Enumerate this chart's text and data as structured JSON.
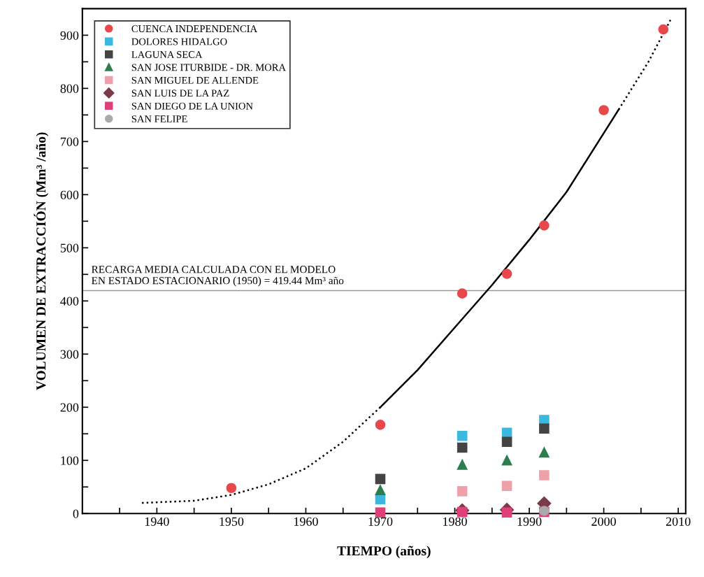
{
  "chart_data": {
    "type": "scatter",
    "xlabel": "TIEMPO (años)",
    "ylabel": "VOLUMEN DE EXTRACCIÓN (Mm³ /año)",
    "xlim": [
      1930,
      2011
    ],
    "ylim": [
      0,
      950
    ],
    "xticks": [
      {
        "value": 1935,
        "label": null
      },
      1940,
      {
        "value": 1945,
        "label": null
      },
      1950,
      {
        "value": 1955,
        "label": null
      },
      1960,
      {
        "value": 1965,
        "label": null
      },
      1970,
      {
        "value": 1975,
        "label": null
      },
      1980,
      {
        "value": 1985,
        "label": null
      },
      1990,
      {
        "value": 1995,
        "label": null
      },
      2000,
      {
        "value": 2005,
        "label": null
      },
      2010
    ],
    "yticks": [
      0,
      {
        "value": 50,
        "label": null
      },
      100,
      {
        "value": 150,
        "label": null
      },
      200,
      {
        "value": 250,
        "label": null
      },
      300,
      {
        "value": 350,
        "label": null
      },
      400,
      {
        "value": 450,
        "label": null
      },
      500,
      {
        "value": 550,
        "label": null
      },
      600,
      {
        "value": 650,
        "label": null
      },
      700,
      {
        "value": 750,
        "label": null
      },
      800,
      {
        "value": 850,
        "label": null
      },
      900
    ],
    "grid": false,
    "legend": "top left",
    "series": [
      {
        "name": "CUENCA INDEPENDENCIA",
        "color": "#e8474c",
        "marker": "circle",
        "x": [
          1950,
          1970,
          1981,
          1987,
          1992,
          2000,
          2008
        ],
        "values": [
          48,
          167,
          414,
          451,
          542,
          759,
          911
        ]
      },
      {
        "name": "DOLORES HIDALGO",
        "color": "#3bb8e0",
        "marker": "square",
        "x": [
          1970,
          1981,
          1987,
          1992
        ],
        "values": [
          27,
          146,
          152,
          176
        ]
      },
      {
        "name": "LAGUNA SECA",
        "color": "#444444",
        "marker": "square",
        "x": [
          1970,
          1981,
          1987,
          1992
        ],
        "values": [
          65,
          124,
          135,
          160
        ]
      },
      {
        "name": "SAN JOSE ITURBIDE - DR. MORA",
        "color": "#2e7d4f",
        "marker": "triangle",
        "x": [
          1970,
          1981,
          1987,
          1992
        ],
        "values": [
          44,
          92,
          100,
          115
        ]
      },
      {
        "name": "SAN MIGUEL DE ALLENDE",
        "color": "#f0a0a8",
        "marker": "square",
        "x": [
          1981,
          1987,
          1992
        ],
        "values": [
          42,
          52,
          72
        ]
      },
      {
        "name": "SAN LUIS DE LA PAZ",
        "color": "#7a3a4a",
        "marker": "diamond",
        "x": [
          1981,
          1987,
          1992
        ],
        "values": [
          6,
          7,
          19
        ]
      },
      {
        "name": "SAN DIEGO DE LA UNION",
        "color": "#e0407a",
        "marker": "square",
        "x": [
          1970,
          1981,
          1987,
          1992
        ],
        "values": [
          2,
          3,
          2,
          3
        ]
      },
      {
        "name": "SAN FELIPE",
        "color": "#aaaaaa",
        "marker": "circle",
        "x": [
          1992
        ],
        "values": [
          5
        ]
      },
      {
        "type": "line",
        "color": "#000000",
        "marker": "none",
        "line_style": "dotted",
        "x": [
          1938,
          1945,
          1950,
          1955,
          1960,
          1965,
          1970
        ],
        "values": [
          20,
          24,
          35,
          55,
          85,
          135,
          200
        ]
      },
      {
        "type": "line",
        "color": "#000000",
        "marker": "none",
        "line_style": "solid",
        "x": [
          1970,
          1975,
          1980,
          1985,
          1990,
          1995,
          2002
        ],
        "values": [
          200,
          270,
          350,
          430,
          515,
          605,
          760
        ]
      },
      {
        "type": "line",
        "color": "#000000",
        "marker": "none",
        "line_style": "dotted",
        "x": [
          2002,
          2006,
          2009
        ],
        "values": [
          760,
          850,
          930
        ]
      }
    ],
    "ref_lines": [
      {
        "axis": "y",
        "value": 419.44,
        "color": "#999999",
        "label": "RECARGA MEDIA CALCULADA CON EL MODELO\nEN ESTADO ESTACIONARIO (1950) = 419.44 Mm³ año"
      }
    ]
  }
}
